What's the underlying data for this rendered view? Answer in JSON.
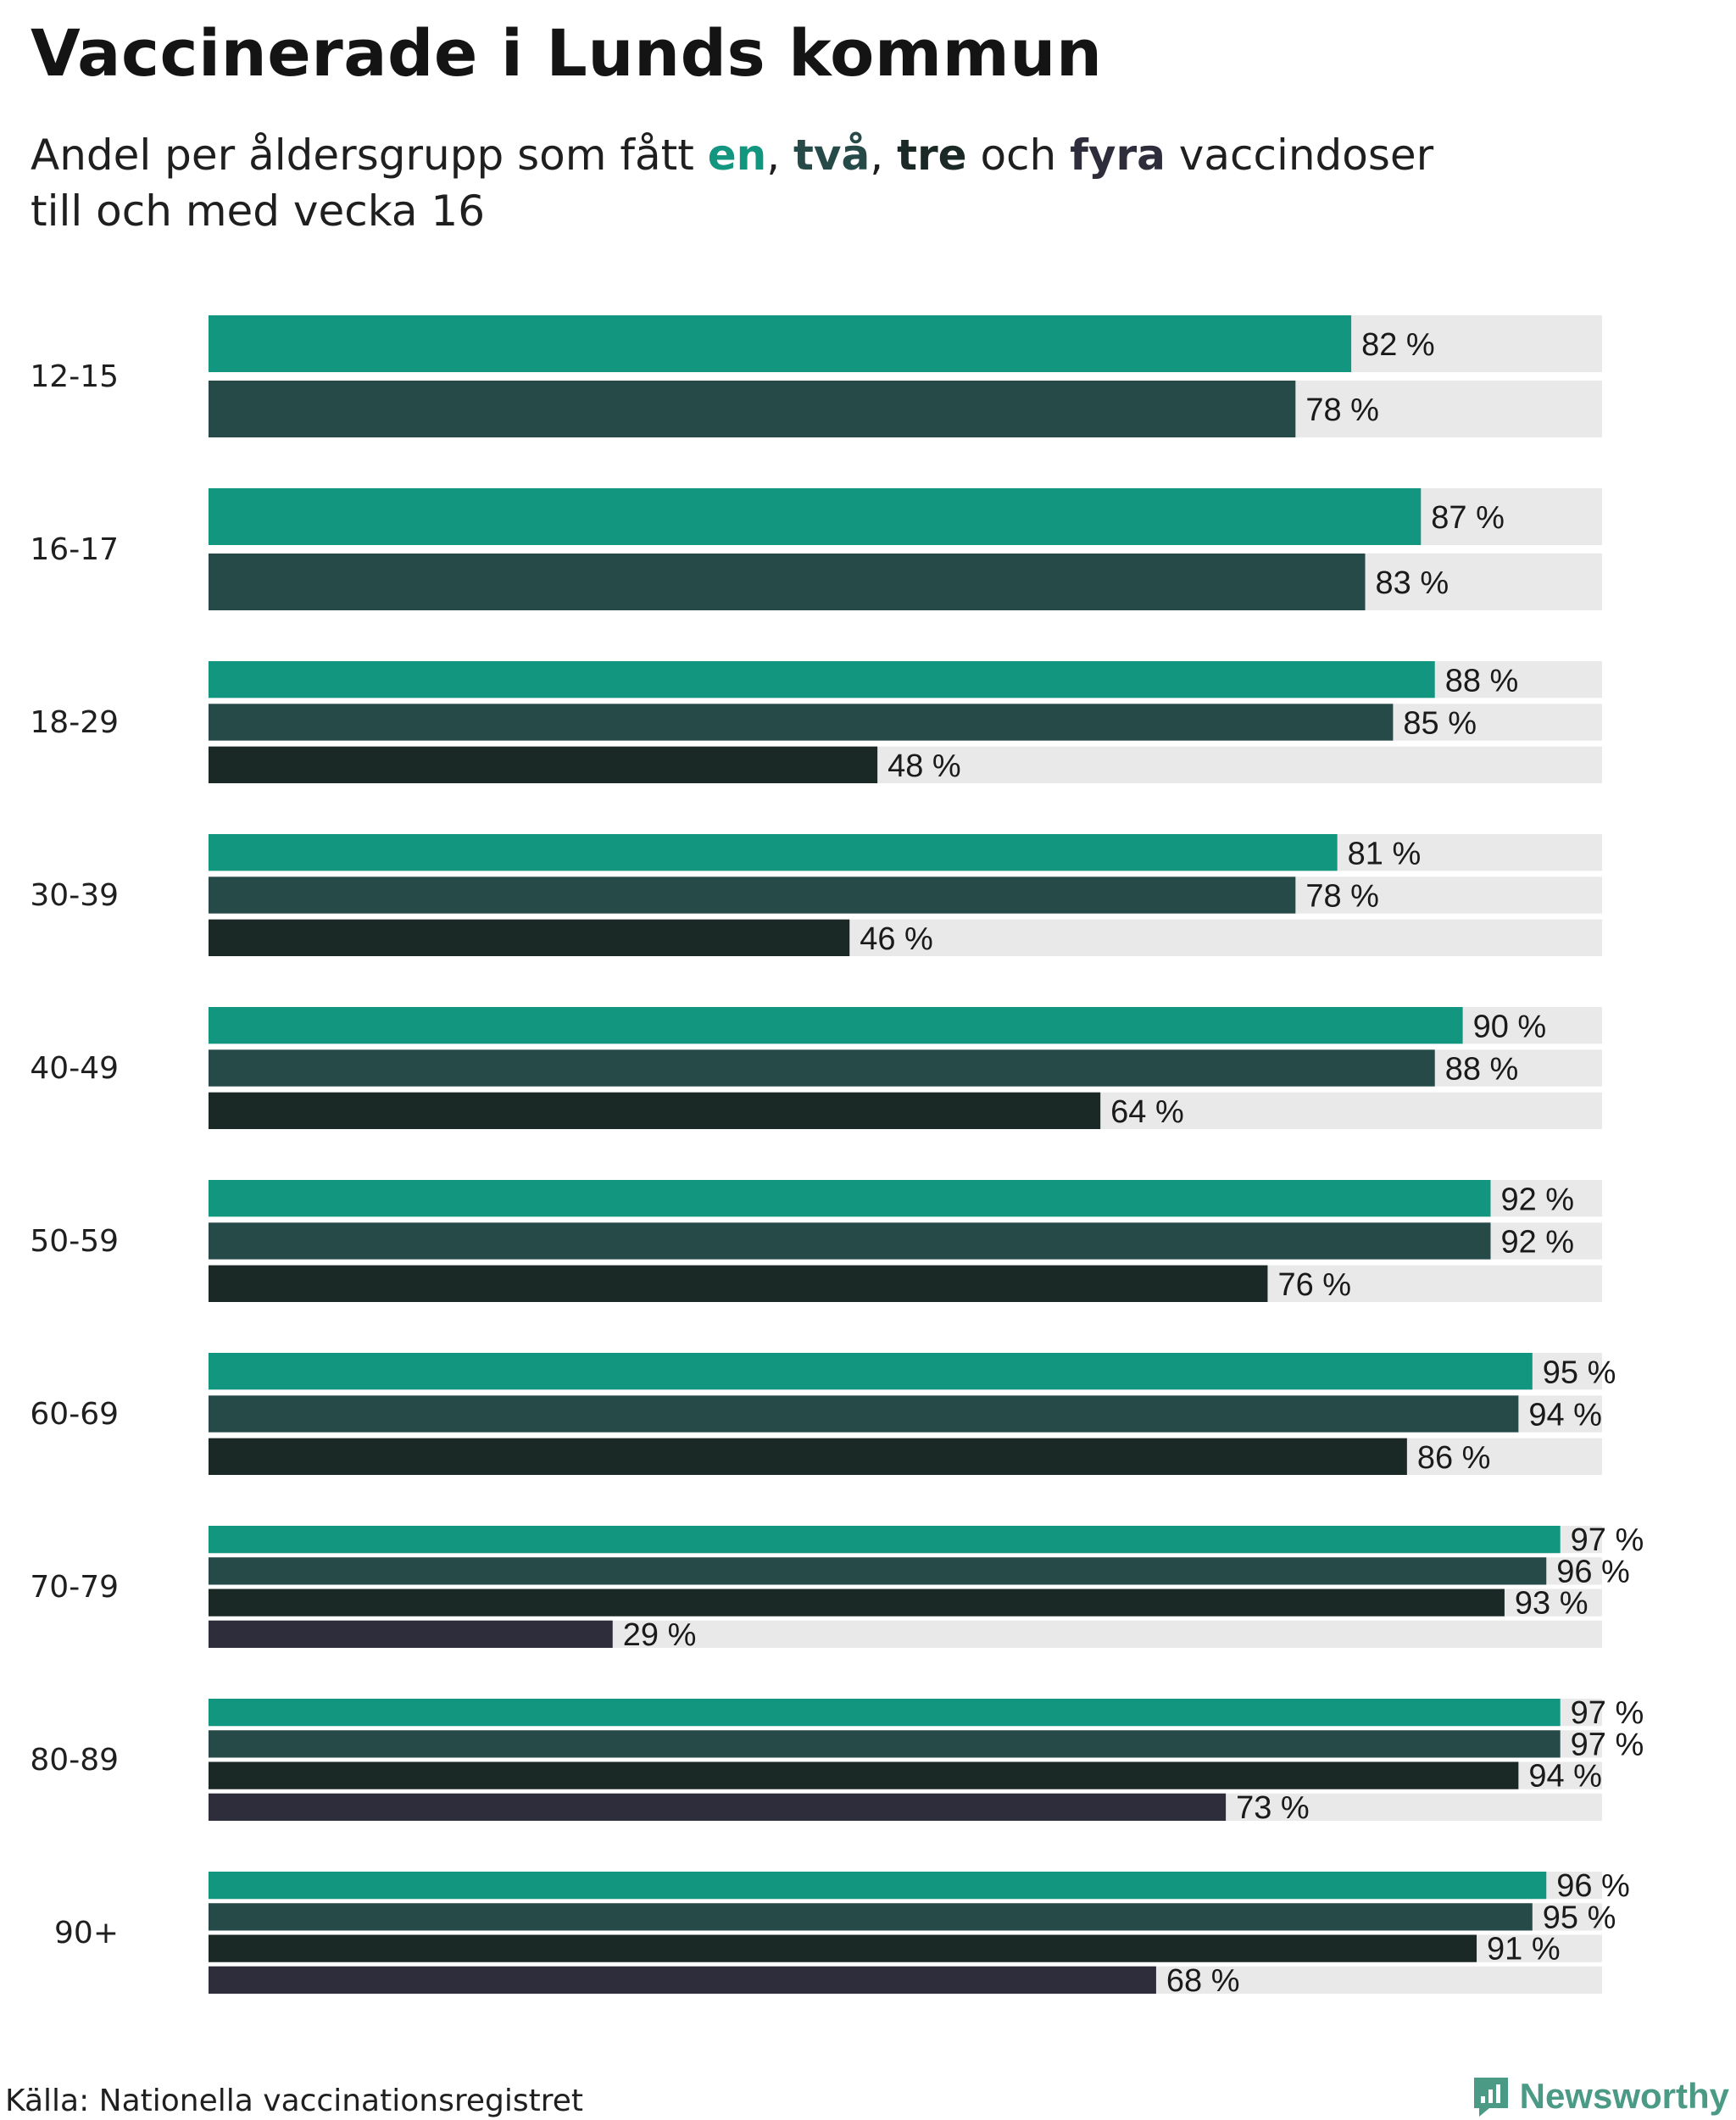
{
  "header": {
    "title": "Vaccinerade i Lunds kommun",
    "subtitle_prefix": "Andel per åldersgrupp som fått ",
    "dose_words": [
      "en",
      "två",
      "tre",
      "fyra"
    ],
    "comma_1": ", ",
    "comma_2": ", ",
    "och": " och ",
    "subtitle_suffix": " vaccindoser",
    "subtitle_line2": "till och med vecka 16"
  },
  "colors": {
    "dose1": "#13967f",
    "dose2": "#264a48",
    "dose3": "#1a2826",
    "dose4": "#2e2d3b",
    "track": "#e9e9e9"
  },
  "chart_data": {
    "type": "bar",
    "orientation": "horizontal",
    "title": "Vaccinerade i Lunds kommun",
    "subtitle": "Andel per åldersgrupp som fått en, två, tre och fyra vaccindoser till och med vecka 16",
    "categories": [
      "12-15",
      "16-17",
      "18-29",
      "30-39",
      "40-49",
      "50-59",
      "60-69",
      "70-79",
      "80-89",
      "90+"
    ],
    "series": [
      {
        "name": "en",
        "values": [
          82,
          87,
          88,
          81,
          90,
          92,
          95,
          97,
          97,
          96
        ]
      },
      {
        "name": "två",
        "values": [
          78,
          83,
          85,
          78,
          88,
          92,
          94,
          96,
          97,
          95
        ]
      },
      {
        "name": "tre",
        "values": [
          null,
          null,
          48,
          46,
          64,
          76,
          86,
          93,
          94,
          91
        ]
      },
      {
        "name": "fyra",
        "values": [
          null,
          null,
          null,
          null,
          null,
          null,
          null,
          29,
          73,
          68
        ]
      }
    ],
    "value_suffix": " %",
    "xlim": [
      0,
      100
    ],
    "grid": false,
    "legend": "none"
  },
  "footer": {
    "source": "Källa: Nationella vaccinationsregistret",
    "brand": "Newsworthy"
  }
}
